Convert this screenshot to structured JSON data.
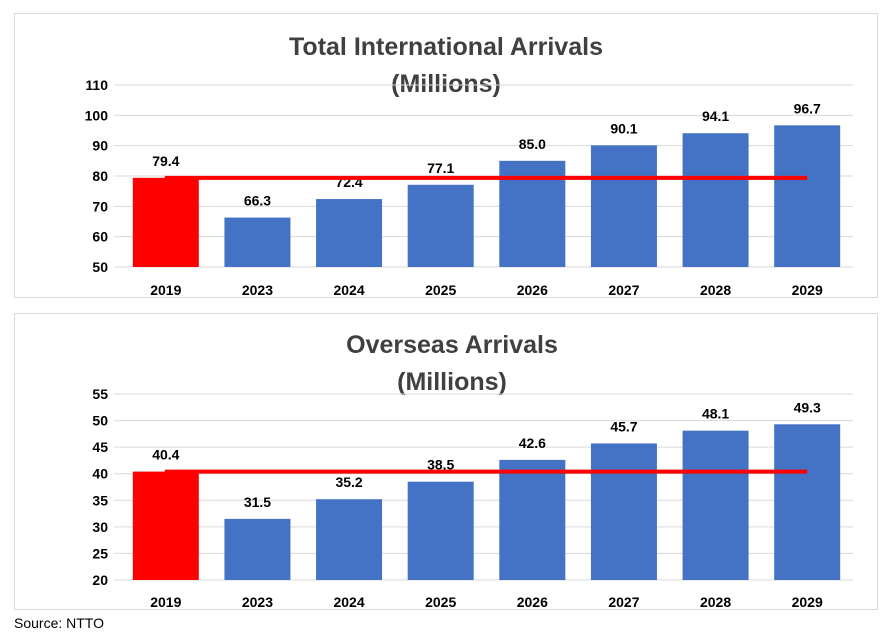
{
  "source_note": "Source: NTTO",
  "chart_data": [
    {
      "type": "bar",
      "title": "Total International Arrivals",
      "subtitle": "(Millions)",
      "categories": [
        "2019",
        "2023",
        "2024",
        "2025",
        "2026",
        "2027",
        "2028",
        "2029"
      ],
      "values": [
        79.4,
        66.3,
        72.4,
        77.1,
        85.0,
        90.1,
        94.1,
        96.7
      ],
      "value_labels": [
        "79.4",
        "66.3",
        "72.4",
        "77.1",
        "85.0",
        "90.1",
        "94.1",
        "96.7"
      ],
      "ylim": [
        50,
        110
      ],
      "yticks": [
        "50",
        "60",
        "70",
        "80",
        "90",
        "100",
        "110"
      ],
      "reference_line": 79.4,
      "grid": true,
      "colors": {
        "highlight_bar": "#ff0000",
        "bar": "#4472c4",
        "reference_line": "#ff0000",
        "grid": "#d9d9d9"
      },
      "highlight_index": 0
    },
    {
      "type": "bar",
      "title": "Overseas Arrivals",
      "subtitle": "(Millions)",
      "categories": [
        "2019",
        "2023",
        "2024",
        "2025",
        "2026",
        "2027",
        "2028",
        "2029"
      ],
      "values": [
        40.4,
        31.5,
        35.2,
        38.5,
        42.6,
        45.7,
        48.1,
        49.3
      ],
      "value_labels": [
        "40.4",
        "31.5",
        "35.2",
        "38.5",
        "42.6",
        "45.7",
        "48.1",
        "49.3"
      ],
      "ylim": [
        20,
        55
      ],
      "yticks": [
        "20",
        "25",
        "30",
        "35",
        "40",
        "45",
        "50",
        "55"
      ],
      "reference_line": 40.4,
      "grid": true,
      "colors": {
        "highlight_bar": "#ff0000",
        "bar": "#4472c4",
        "reference_line": "#ff0000",
        "grid": "#d9d9d9"
      },
      "highlight_index": 0
    }
  ]
}
